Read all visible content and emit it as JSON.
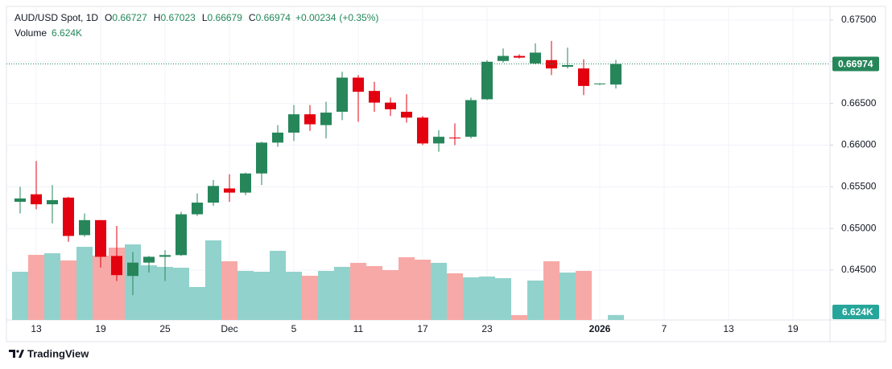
{
  "chart_data": {
    "type": "candlestick",
    "title": "AUD/USD Spot, 1D",
    "header_labels": [
      "O",
      "H",
      "L",
      "C"
    ],
    "change": "+0.00234",
    "change_pct": "(+0.35%)",
    "volume_label": "Volume",
    "volume_value_label": "6.624K",
    "footer": "TradingView",
    "up_color": "#26865a",
    "down_color": "#e3000f",
    "volume_up_color": "#92d2cc",
    "volume_down_color": "#f7a9a7",
    "grid": true,
    "categories": [
      null,
      "13",
      null,
      null,
      null,
      "19",
      null,
      null,
      null,
      "25",
      null,
      null,
      null,
      "Dec",
      null,
      null,
      null,
      "5",
      null,
      null,
      null,
      "11",
      null,
      null,
      null,
      "17",
      null,
      null,
      null,
      "23",
      null,
      null,
      null,
      null,
      null,
      null,
      "2026",
      null,
      null,
      null,
      "7",
      null,
      null,
      null,
      "13",
      null,
      null,
      null,
      "19",
      null,
      null
    ],
    "open": [
      0.6532,
      0.6541,
      0.6529,
      0.6537,
      0.6492,
      0.651,
      0.6467,
      0.6443,
      0.6459,
      0.6466,
      0.6468,
      0.6517,
      0.6531,
      0.6548,
      0.6543,
      0.6566,
      0.6603,
      0.6615,
      0.6637,
      0.6624,
      0.664,
      0.6681,
      0.6665,
      0.6651,
      0.664,
      0.6633,
      0.6602,
      0.6609,
      0.661,
      0.6655,
      0.6701,
      0.6707,
      0.6698,
      0.6702,
      0.6694,
      0.6692,
      0.6673,
      0.66727,
      null,
      null,
      null,
      null,
      null,
      null,
      null,
      null,
      null,
      null,
      null,
      null,
      null
    ],
    "high": [
      0.655,
      0.6581,
      0.6552,
      0.6538,
      0.6518,
      0.651,
      0.6503,
      0.6472,
      0.6467,
      0.6474,
      0.652,
      0.6542,
      0.6558,
      0.6565,
      0.6567,
      0.6604,
      0.6624,
      0.6648,
      0.6648,
      0.6652,
      0.6688,
      0.6684,
      0.6676,
      0.6657,
      0.6661,
      0.6635,
      0.6618,
      0.6626,
      0.6657,
      0.6702,
      0.6716,
      0.6709,
      0.6722,
      0.6725,
      0.6717,
      0.6703,
      0.6674,
      0.67023,
      null,
      null,
      null,
      null,
      null,
      null,
      null,
      null,
      null,
      null,
      null,
      null,
      null
    ],
    "low": [
      0.6518,
      0.6523,
      0.6506,
      0.6484,
      0.649,
      0.6453,
      0.6437,
      0.642,
      0.6447,
      0.6437,
      0.6467,
      0.6515,
      0.6527,
      0.6532,
      0.654,
      0.6552,
      0.6598,
      0.6605,
      0.6617,
      0.6608,
      0.663,
      0.6628,
      0.664,
      0.6635,
      0.6627,
      0.66,
      0.6592,
      0.66,
      0.6608,
      0.6654,
      0.6699,
      0.6704,
      0.6697,
      0.6684,
      0.6692,
      0.666,
      0.6672,
      0.66679,
      null,
      null,
      null,
      null,
      null,
      null,
      null,
      null,
      null,
      null,
      null,
      null,
      null
    ],
    "close": [
      0.6536,
      0.6529,
      0.6534,
      0.6491,
      0.651,
      0.6466,
      0.6444,
      0.6459,
      0.6466,
      0.6468,
      0.6517,
      0.6531,
      0.6551,
      0.6543,
      0.6566,
      0.6603,
      0.6615,
      0.6637,
      0.6625,
      0.6639,
      0.6681,
      0.6664,
      0.6651,
      0.6643,
      0.6633,
      0.6602,
      0.661,
      0.6608,
      0.6654,
      0.67,
      0.6707,
      0.6705,
      0.6711,
      0.6692,
      0.6696,
      0.6671,
      0.6674,
      0.66974,
      null,
      null,
      null,
      null,
      null,
      null,
      null,
      null,
      null,
      null,
      null,
      null,
      null
    ],
    "volume": [
      64600,
      87200,
      89400,
      79700,
      98000,
      86200,
      96900,
      101200,
      73200,
      71100,
      70000,
      44200,
      106600,
      78600,
      65700,
      64600,
      92600,
      64600,
      59200,
      65700,
      71100,
      76500,
      72200,
      66800,
      84000,
      80800,
      76500,
      62500,
      57100,
      58200,
      56000,
      6500,
      52800,
      78600,
      63500,
      65700,
      null,
      6624,
      null,
      null,
      null,
      null,
      null,
      null,
      null,
      null,
      null,
      null,
      null,
      null,
      null
    ],
    "ylim": [
      0.63902,
      0.67664
    ],
    "yticks": [
      {
        "value": 0.645,
        "label": "0.64500"
      },
      {
        "value": 0.65,
        "label": "0.65000"
      },
      {
        "value": 0.655,
        "label": "0.65500"
      },
      {
        "value": 0.66,
        "label": "0.66000"
      },
      {
        "value": 0.665,
        "label": "0.66500"
      },
      {
        "value": 0.67,
        "label": "0.67000"
      },
      {
        "value": 0.675,
        "label": "0.67500"
      }
    ],
    "volume_lim": [
      0,
      140000
    ]
  }
}
